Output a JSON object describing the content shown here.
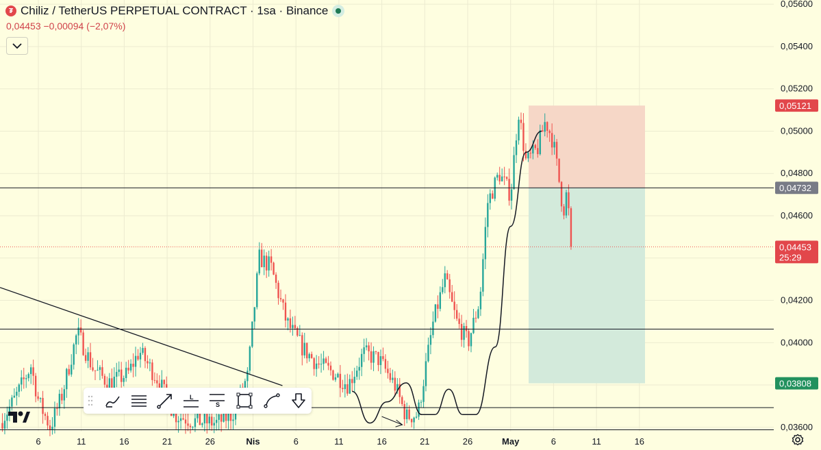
{
  "header": {
    "logo_glyph": "₮",
    "title": "Chiliz / TetherUS PERPETUAL CONTRACT · 1sa · Binance",
    "quote": "0,04453  −0,00094 (−2,07%)",
    "status_icon": "market-open-dot"
  },
  "colors": {
    "background": "#fefee0",
    "up": "#26a69a",
    "down": "#ef5350",
    "stop_zone": "#f6d7c7",
    "target_zone": "#d3eadb",
    "stop_label": "#e2474b",
    "entry_label": "#787b86",
    "target_label": "#22915e",
    "last_price_label": "#e2474b"
  },
  "chart_data": {
    "type": "candlestick",
    "symbol": "CHZUSDT.P",
    "timeframe": "1sa",
    "x_axis": {
      "tick_labels": [
        "6",
        "11",
        "16",
        "21",
        "26",
        "Nis",
        "6",
        "11",
        "16",
        "21",
        "26",
        "May",
        "6",
        "11",
        "16"
      ],
      "bold_labels": [
        "Nis",
        "May"
      ]
    },
    "y_axis": {
      "range": [
        0.0358,
        0.0562
      ],
      "tick_values": [
        0.036,
        0.038,
        0.04,
        0.042,
        0.044,
        0.046,
        0.048,
        0.05,
        0.052,
        0.054,
        0.056
      ],
      "tick_labels": [
        "0,03600",
        "0,03800",
        "0,04000",
        "0,04200",
        "0,04400",
        "0,04600",
        "0,04800",
        "0,05000",
        "0,05200",
        "0,05400",
        "0,05600"
      ]
    },
    "price_path": [
      [
        0,
        0.0362
      ],
      [
        0.02,
        0.0374
      ],
      [
        0.04,
        0.0389
      ],
      [
        0.05,
        0.0372
      ],
      [
        0.065,
        0.036
      ],
      [
        0.08,
        0.0375
      ],
      [
        0.1,
        0.0405
      ],
      [
        0.12,
        0.0388
      ],
      [
        0.14,
        0.0381
      ],
      [
        0.165,
        0.0385
      ],
      [
        0.18,
        0.0396
      ],
      [
        0.205,
        0.0382
      ],
      [
        0.225,
        0.0366
      ],
      [
        0.25,
        0.0363
      ],
      [
        0.28,
        0.0362
      ],
      [
        0.3,
        0.0366
      ],
      [
        0.32,
        0.0384
      ],
      [
        0.335,
        0.044
      ],
      [
        0.35,
        0.0436
      ],
      [
        0.37,
        0.041
      ],
      [
        0.39,
        0.0398
      ],
      [
        0.41,
        0.039
      ],
      [
        0.43,
        0.0386
      ],
      [
        0.45,
        0.038
      ],
      [
        0.47,
        0.0395
      ],
      [
        0.49,
        0.0392
      ],
      [
        0.51,
        0.038
      ],
      [
        0.525,
        0.0365
      ],
      [
        0.54,
        0.0366
      ],
      [
        0.56,
        0.041
      ],
      [
        0.575,
        0.043
      ],
      [
        0.59,
        0.041
      ],
      [
        0.605,
        0.04
      ],
      [
        0.62,
        0.042
      ],
      [
        0.63,
        0.0466
      ],
      [
        0.645,
        0.048
      ],
      [
        0.66,
        0.047
      ],
      [
        0.67,
        0.051
      ],
      [
        0.68,
        0.0485
      ],
      [
        0.695,
        0.0492
      ],
      [
        0.705,
        0.0505
      ],
      [
        0.715,
        0.0495
      ],
      [
        0.722,
        0.0478
      ],
      [
        0.728,
        0.0462
      ],
      [
        0.733,
        0.0472
      ],
      [
        0.738,
        0.0445
      ]
    ],
    "last_price": {
      "value": 0.04453,
      "label": "0,04453",
      "countdown": "25:29"
    },
    "horizontal_lines": [
      0.04732,
      0.04064,
      0.03693,
      0.03588
    ],
    "trendline": {
      "from": [
        0.0,
        0.04261
      ],
      "to": [
        0.365,
        0.03797
      ]
    },
    "position": {
      "entry": 0.04732,
      "entry_label": "0,04732",
      "stop": 0.05121,
      "stop_label": "0,05121",
      "target": 0.03808,
      "target_label": "0,03808"
    },
    "projection_path": [
      [
        0.455,
        0.0377
      ],
      [
        0.478,
        0.0362
      ],
      [
        0.5,
        0.0372
      ],
      [
        0.525,
        0.0381
      ],
      [
        0.545,
        0.0366
      ],
      [
        0.562,
        0.0366
      ],
      [
        0.58,
        0.0378
      ],
      [
        0.598,
        0.0366
      ],
      [
        0.615,
        0.0366
      ],
      [
        0.64,
        0.0398
      ],
      [
        0.66,
        0.0455
      ],
      [
        0.68,
        0.049
      ],
      [
        0.7,
        0.05
      ]
    ]
  },
  "toolbar": {
    "tools": [
      "brush-icon",
      "horizontal-lines-icon",
      "arrow-line-icon",
      "long-position-icon",
      "short-position-icon",
      "rectangle-icon",
      "path-icon",
      "arrow-down-icon"
    ],
    "long_glyph": "L",
    "short_glyph": "S"
  }
}
